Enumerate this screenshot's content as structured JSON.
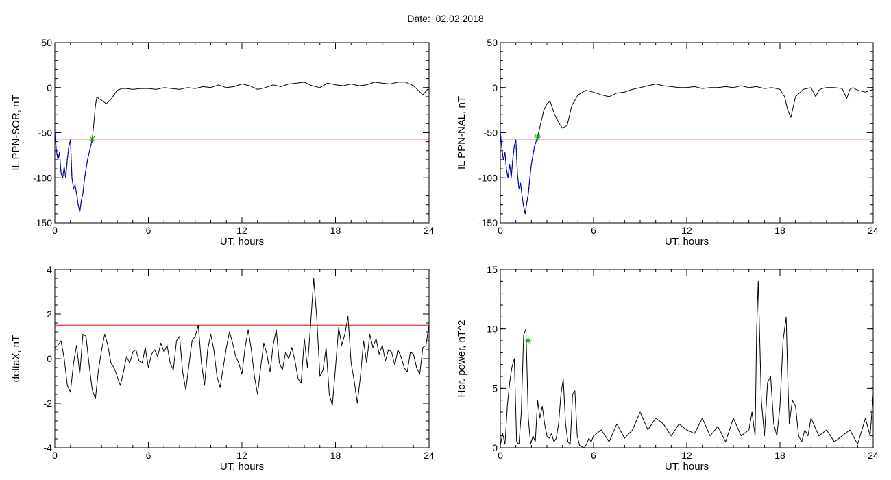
{
  "page": {
    "title": "Date:  02.02.2018"
  },
  "chart_data": [
    {
      "type": "line",
      "xlabel": "UT, hours",
      "ylabel": "IL PPN-SOR, nT",
      "xlim": [
        0,
        24
      ],
      "ylim": [
        -150,
        50
      ],
      "xticks": [
        0,
        6,
        12,
        18,
        24
      ],
      "yticks": [
        -150,
        -100,
        -50,
        0,
        50
      ],
      "threshold": -57,
      "colors": {
        "trace": "#000000",
        "threshold": "#ff0000",
        "highlight": "#0000ff",
        "marker": "#00a000"
      },
      "highlight_range": [
        0,
        2.4
      ],
      "markers": [
        {
          "x": 2.4,
          "y": -57
        }
      ],
      "series": [
        {
          "x": [
            0,
            0.1,
            0.2,
            0.3,
            0.4,
            0.5,
            0.6,
            0.7,
            0.8,
            0.9,
            1.0,
            1.1,
            1.2,
            1.3,
            1.4,
            1.5,
            1.6,
            1.7,
            1.8,
            1.9,
            2.0,
            2.1,
            2.2,
            2.3,
            2.4,
            2.5,
            2.6,
            2.7,
            2.8,
            3.0,
            3.3,
            3.6,
            4.0,
            4.3,
            4.6,
            5.0,
            5.5,
            6.0,
            6.5,
            7.0,
            7.5,
            8.0,
            8.5,
            9.0,
            9.5,
            10.0,
            10.5,
            11.0,
            11.5,
            12.0,
            12.5,
            13.0,
            13.5,
            14.0,
            14.5,
            15.0,
            15.5,
            16.0,
            16.5,
            17.0,
            17.5,
            18.0,
            18.5,
            19.0,
            19.5,
            20.0,
            20.5,
            21.0,
            21.5,
            22.0,
            22.5,
            23.0,
            23.3,
            23.6,
            23.9,
            24.0
          ],
          "values": [
            -50,
            -70,
            -80,
            -72,
            -95,
            -100,
            -88,
            -100,
            -80,
            -65,
            -58,
            -100,
            -112,
            -108,
            -118,
            -130,
            -138,
            -125,
            -118,
            -102,
            -90,
            -80,
            -72,
            -65,
            -57,
            -40,
            -20,
            -10,
            -12,
            -14,
            -18,
            -13,
            -3,
            -1,
            -1,
            -2,
            -1,
            -1,
            -2,
            0,
            -1,
            -2,
            0,
            -1,
            1,
            0,
            3,
            0,
            1,
            4,
            2,
            -2,
            0,
            3,
            1,
            4,
            5,
            6,
            2,
            0,
            5,
            3,
            2,
            4,
            2,
            3,
            6,
            5,
            4,
            6,
            6,
            2,
            -3,
            -8,
            -2,
            -2
          ]
        }
      ]
    },
    {
      "type": "line",
      "xlabel": "UT, hours",
      "ylabel": "IL PPN-NAL, nT",
      "xlim": [
        0,
        24
      ],
      "ylim": [
        -150,
        50
      ],
      "xticks": [
        0,
        6,
        12,
        18,
        24
      ],
      "yticks": [
        -150,
        -100,
        -50,
        0,
        50
      ],
      "threshold": -57,
      "colors": {
        "trace": "#000000",
        "threshold": "#ff0000",
        "highlight": "#0000ff",
        "marker": "#00a000"
      },
      "highlight_range": [
        0,
        2.4
      ],
      "markers": [
        {
          "x": 2.4,
          "y": -55
        }
      ],
      "series": [
        {
          "x": [
            0,
            0.1,
            0.2,
            0.3,
            0.4,
            0.5,
            0.6,
            0.7,
            0.8,
            0.9,
            1.0,
            1.1,
            1.2,
            1.3,
            1.4,
            1.5,
            1.6,
            1.7,
            1.8,
            1.9,
            2.0,
            2.1,
            2.2,
            2.3,
            2.4,
            2.6,
            2.8,
            3.0,
            3.2,
            3.5,
            3.8,
            4.0,
            4.3,
            4.6,
            5.0,
            5.5,
            6.0,
            6.5,
            7.0,
            7.5,
            8.0,
            8.5,
            9.0,
            9.5,
            10.0,
            10.5,
            11.0,
            11.5,
            12.0,
            12.5,
            13.0,
            13.5,
            14.0,
            14.5,
            15.0,
            15.5,
            16.0,
            16.5,
            17.0,
            17.5,
            18.0,
            18.3,
            18.5,
            18.7,
            19.0,
            19.5,
            20.0,
            20.3,
            20.5,
            20.7,
            21.0,
            21.5,
            22.0,
            22.3,
            22.5,
            22.7,
            23.0,
            23.5,
            24.0
          ],
          "values": [
            -50,
            -68,
            -80,
            -72,
            -92,
            -100,
            -85,
            -100,
            -80,
            -65,
            -58,
            -95,
            -112,
            -106,
            -120,
            -132,
            -140,
            -128,
            -118,
            -100,
            -85,
            -75,
            -65,
            -60,
            -55,
            -40,
            -25,
            -18,
            -15,
            -30,
            -40,
            -45,
            -42,
            -20,
            -8,
            -3,
            -5,
            -8,
            -10,
            -6,
            -5,
            -2,
            0,
            2,
            4,
            2,
            1,
            0,
            0,
            1,
            -1,
            0,
            0,
            1,
            0,
            2,
            0,
            1,
            -1,
            0,
            -2,
            -10,
            -25,
            -33,
            -10,
            -2,
            0,
            -10,
            -3,
            -1,
            0,
            0,
            -1,
            -12,
            -2,
            0,
            -3,
            -5,
            -2
          ]
        }
      ]
    },
    {
      "type": "line",
      "xlabel": "UT, hours",
      "ylabel": "deltaX, nT",
      "xlim": [
        0,
        24
      ],
      "ylim": [
        -4,
        4
      ],
      "xticks": [
        0,
        6,
        12,
        18,
        24
      ],
      "yticks": [
        -4,
        -2,
        0,
        2,
        4
      ],
      "threshold": 1.5,
      "colors": {
        "trace": "#000000",
        "threshold": "#ff0000"
      },
      "series": [
        {
          "x": [
            0,
            0.2,
            0.4,
            0.6,
            0.8,
            1.0,
            1.2,
            1.4,
            1.6,
            1.8,
            2.0,
            2.2,
            2.4,
            2.6,
            2.8,
            3.0,
            3.2,
            3.4,
            3.6,
            3.8,
            4.0,
            4.2,
            4.4,
            4.6,
            4.8,
            5.0,
            5.2,
            5.4,
            5.6,
            5.8,
            6.0,
            6.2,
            6.4,
            6.6,
            6.8,
            7.0,
            7.2,
            7.4,
            7.6,
            7.8,
            8.0,
            8.2,
            8.4,
            8.6,
            8.8,
            9.0,
            9.2,
            9.4,
            9.6,
            9.8,
            10.0,
            10.2,
            10.4,
            10.6,
            10.8,
            11.0,
            11.2,
            11.4,
            11.6,
            11.8,
            12.0,
            12.2,
            12.4,
            12.6,
            12.8,
            13.0,
            13.2,
            13.4,
            13.6,
            13.8,
            14.0,
            14.2,
            14.4,
            14.6,
            14.8,
            15.0,
            15.2,
            15.4,
            15.6,
            15.8,
            16.0,
            16.2,
            16.4,
            16.6,
            16.8,
            17.0,
            17.2,
            17.4,
            17.6,
            17.8,
            18.0,
            18.2,
            18.4,
            18.6,
            18.8,
            19.0,
            19.2,
            19.4,
            19.6,
            19.8,
            20.0,
            20.2,
            20.4,
            20.6,
            20.8,
            21.0,
            21.2,
            21.4,
            21.6,
            21.8,
            22.0,
            22.2,
            22.4,
            22.6,
            22.8,
            23.0,
            23.2,
            23.4,
            23.6,
            23.8,
            24.0
          ],
          "values": [
            0.5,
            0.6,
            0.8,
            0.0,
            -1.2,
            -1.5,
            -0.2,
            0.6,
            -0.7,
            1.1,
            1.0,
            -0.3,
            -1.4,
            -1.8,
            -0.5,
            0.4,
            1.1,
            0.6,
            -0.2,
            -0.4,
            -0.8,
            -1.2,
            -0.6,
            0.1,
            -0.2,
            0.3,
            0.4,
            -0.1,
            -0.2,
            0.5,
            -0.4,
            0.2,
            0.4,
            0.1,
            0.7,
            0.3,
            0.6,
            -0.2,
            -0.5,
            0.8,
            1.0,
            -0.6,
            -1.4,
            -0.3,
            0.8,
            1.0,
            1.5,
            -0.2,
            -1.2,
            0.4,
            1.1,
            0.4,
            -0.8,
            -1.3,
            -0.4,
            0.5,
            1.2,
            0.7,
            0.1,
            -0.2,
            -0.7,
            0.5,
            1.3,
            0.4,
            -0.8,
            -1.6,
            -0.4,
            0.7,
            0.2,
            -0.6,
            0.6,
            1.3,
            -0.2,
            -0.5,
            0.3,
            0.0,
            0.5,
            -0.1,
            -0.9,
            -1.1,
            0.9,
            -0.4,
            1.5,
            3.6,
            1.8,
            -0.8,
            -0.5,
            0.5,
            -1.6,
            -2.1,
            -0.4,
            1.4,
            0.6,
            1.1,
            1.9,
            -0.2,
            -1.0,
            -2.0,
            -0.8,
            0.8,
            -0.2,
            1.1,
            0.5,
            0.9,
            0.2,
            0.6,
            -0.1,
            0.4,
            0.3,
            -0.3,
            0.4,
            0.1,
            -0.4,
            -0.6,
            0.3,
            0.2,
            -0.4,
            -0.7,
            0.5,
            0.6,
            1.5
          ]
        }
      ]
    },
    {
      "type": "line",
      "xlabel": "UT, hours",
      "ylabel": "Hor. power, nT^2",
      "xlim": [
        0,
        24
      ],
      "ylim": [
        0,
        15
      ],
      "xticks": [
        0,
        6,
        12,
        18,
        24
      ],
      "yticks": [
        0,
        5,
        10,
        15
      ],
      "colors": {
        "trace": "#000000",
        "highlight": "#0000ff",
        "marker": "#00a000"
      },
      "markers": [
        {
          "x": 1.8,
          "y": 9
        }
      ],
      "series": [
        {
          "x": [
            0,
            0.15,
            0.3,
            0.45,
            0.6,
            0.75,
            0.9,
            1.05,
            1.2,
            1.35,
            1.5,
            1.65,
            1.8,
            1.95,
            2.1,
            2.25,
            2.4,
            2.55,
            2.7,
            2.85,
            3.0,
            3.15,
            3.3,
            3.45,
            3.6,
            3.75,
            3.9,
            4.05,
            4.2,
            4.35,
            4.5,
            4.65,
            4.8,
            4.95,
            5.1,
            5.25,
            5.4,
            5.55,
            5.7,
            5.85,
            6.0,
            6.5,
            7.0,
            7.5,
            8.0,
            8.5,
            9.0,
            9.5,
            10.0,
            10.5,
            11.0,
            11.5,
            12.0,
            12.5,
            13.0,
            13.5,
            14.0,
            14.5,
            15.0,
            15.5,
            16.0,
            16.2,
            16.4,
            16.5,
            16.6,
            16.8,
            17.0,
            17.2,
            17.4,
            17.6,
            17.8,
            18.0,
            18.2,
            18.4,
            18.5,
            18.6,
            18.8,
            19.0,
            19.2,
            19.4,
            19.6,
            19.8,
            20.0,
            20.5,
            21.0,
            21.5,
            22.0,
            22.5,
            23.0,
            23.5,
            23.8,
            24.0
          ],
          "values": [
            0.2,
            1.2,
            0.3,
            3.5,
            5.5,
            6.8,
            7.5,
            0.5,
            0.3,
            3.0,
            9.5,
            10.0,
            2.5,
            0.3,
            1.0,
            0.5,
            4.0,
            2.5,
            3.5,
            2.0,
            1.0,
            0.8,
            1.2,
            0.5,
            0.8,
            2.0,
            4.5,
            5.8,
            2.0,
            0.5,
            0.3,
            4.5,
            4.8,
            1.0,
            0.2,
            0.1,
            0.0,
            0.3,
            0.8,
            0.5,
            1.0,
            1.5,
            0.5,
            2.0,
            0.8,
            1.5,
            3.0,
            1.5,
            2.5,
            2.0,
            1.0,
            2.0,
            1.5,
            1.2,
            2.5,
            1.0,
            1.8,
            0.5,
            2.5,
            1.0,
            1.5,
            3.0,
            1.0,
            10.0,
            14.0,
            4.0,
            1.0,
            5.5,
            6.0,
            2.0,
            1.0,
            3.5,
            9.0,
            11.0,
            6.0,
            2.0,
            4.0,
            3.5,
            1.0,
            0.5,
            1.5,
            1.0,
            2.5,
            1.0,
            1.5,
            0.5,
            1.0,
            1.5,
            0.3,
            2.5,
            1.0,
            4.5
          ]
        }
      ]
    }
  ]
}
